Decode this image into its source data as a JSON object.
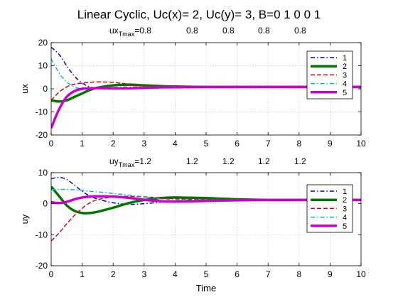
{
  "figure": {
    "title": "Linear Cyclic,    Uc(x)= 2, Uc(y)= 3, B=0  1  0  0  1"
  },
  "chart_data": [
    {
      "type": "line",
      "ylabel": "ux",
      "xlabel": "",
      "xlim": [
        0,
        10
      ],
      "ylim": [
        -20,
        20
      ],
      "xticks": [
        0,
        1,
        2,
        3,
        4,
        5,
        6,
        7,
        8,
        9,
        10
      ],
      "yticks": [
        -20,
        -10,
        0,
        10,
        20
      ],
      "grid": true,
      "legend_position": "top-right",
      "annotation": {
        "base": "ux",
        "sub": "Tmax",
        "values": [
          "=0.8",
          "0.8",
          "0.8",
          "0.8",
          "0.8"
        ]
      },
      "x": [
        0,
        0.25,
        0.5,
        0.75,
        1,
        1.25,
        1.5,
        2,
        2.5,
        3,
        3.5,
        4,
        5,
        6,
        7,
        8,
        9,
        10
      ],
      "series": [
        {
          "name": "1",
          "color": "#0000cc",
          "dash": "dashdot",
          "width": 1.5,
          "values": [
            18,
            15,
            10,
            5.5,
            2.5,
            0.8,
            0.2,
            0,
            0.2,
            0.5,
            0.7,
            0.8,
            0.8,
            0.8,
            0.8,
            0.8,
            0.8,
            0.8
          ]
        },
        {
          "name": "2",
          "color": "#007700",
          "dash": "solid",
          "width": 3.5,
          "values": [
            -5,
            -5.5,
            -5,
            -3.5,
            -2,
            -0.5,
            0.5,
            1.5,
            1.8,
            1.5,
            1.2,
            1,
            0.8,
            0.8,
            0.8,
            0.8,
            0.8,
            0.8
          ]
        },
        {
          "name": "3",
          "color": "#dd0000",
          "dash": "dashed",
          "width": 1.5,
          "values": [
            -5,
            -1.5,
            0.8,
            2,
            2.5,
            2.8,
            3,
            2.8,
            2,
            1.2,
            0.6,
            0.4,
            0.6,
            0.8,
            0.8,
            0.8,
            0.8,
            0.8
          ]
        },
        {
          "name": "4",
          "color": "#00bbbb",
          "dash": "dashdot",
          "width": 1.5,
          "values": [
            13,
            7,
            3,
            0.8,
            0,
            0,
            0.2,
            0.6,
            0.8,
            0.8,
            0.8,
            0.8,
            0.8,
            0.8,
            0.8,
            0.8,
            0.8,
            0.8
          ]
        },
        {
          "name": "5",
          "color": "#cc00cc",
          "dash": "solid",
          "width": 3.5,
          "values": [
            -17,
            -9,
            -3.5,
            -1,
            0,
            0.2,
            0.3,
            0.2,
            0.2,
            0.4,
            0.6,
            0.7,
            0.8,
            0.8,
            0.8,
            0.8,
            0.8,
            0.8
          ]
        }
      ]
    },
    {
      "type": "line",
      "ylabel": "uy",
      "xlabel": "Time",
      "xlim": [
        0,
        10
      ],
      "ylim": [
        -20,
        10
      ],
      "xticks": [
        0,
        1,
        2,
        3,
        4,
        5,
        6,
        7,
        8,
        9,
        10
      ],
      "yticks": [
        -20,
        -10,
        0,
        10
      ],
      "grid": true,
      "legend_position": "top-right",
      "annotation": {
        "base": "uy",
        "sub": "Tmax",
        "values": [
          "=1.2",
          "1.2",
          "1.2",
          "1.2",
          "1.2"
        ]
      },
      "x": [
        0,
        0.25,
        0.5,
        0.75,
        1,
        1.25,
        1.5,
        2,
        2.5,
        3,
        3.5,
        4,
        5,
        6,
        7,
        8,
        9,
        10
      ],
      "series": [
        {
          "name": "1",
          "color": "#0000cc",
          "dash": "dashdot",
          "width": 1.5,
          "values": [
            8,
            8.5,
            7.8,
            6,
            4,
            2.5,
            1.5,
            0.3,
            -0.2,
            0,
            0.5,
            0.9,
            1.2,
            1.2,
            1.2,
            1.2,
            1.2,
            1.2
          ]
        },
        {
          "name": "2",
          "color": "#007700",
          "dash": "solid",
          "width": 3.5,
          "values": [
            5.5,
            2.5,
            -0.5,
            -2.3,
            -3,
            -3,
            -2.6,
            -1.3,
            0.2,
            1.2,
            1.8,
            2,
            1.8,
            1.4,
            1.2,
            1.2,
            1.2,
            1.2
          ]
        },
        {
          "name": "3",
          "color": "#dd0000",
          "dash": "dashed",
          "width": 1.5,
          "values": [
            -12,
            -9.5,
            -6.5,
            -3.8,
            -1.5,
            0.3,
            1.3,
            2.2,
            2.4,
            2.2,
            1.9,
            1.6,
            1.3,
            1.2,
            1.2,
            1.2,
            1.2,
            1.2
          ]
        },
        {
          "name": "4",
          "color": "#00bbbb",
          "dash": "dashdot",
          "width": 1.5,
          "values": [
            4.5,
            4.6,
            4.6,
            4.5,
            4.3,
            4,
            3.8,
            3.3,
            2.8,
            2.2,
            1.6,
            1.3,
            1.2,
            1.2,
            1.2,
            1.2,
            1.2,
            1.2
          ]
        },
        {
          "name": "5",
          "color": "#cc00cc",
          "dash": "solid",
          "width": 3.5,
          "values": [
            0.5,
            0.2,
            0.6,
            1.4,
            2,
            2.3,
            2.4,
            2.3,
            1.9,
            1.3,
            0.8,
            0.7,
            0.9,
            1.1,
            1.2,
            1.2,
            1.2,
            1.2
          ]
        }
      ]
    }
  ]
}
